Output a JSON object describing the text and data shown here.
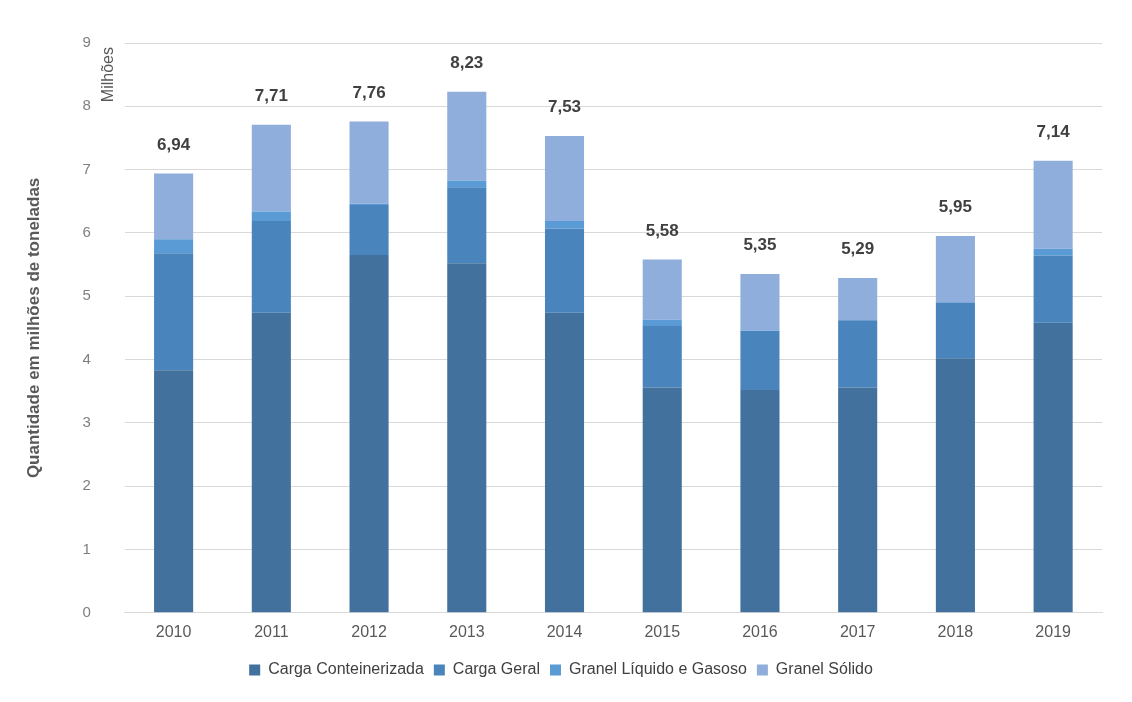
{
  "chart_data": {
    "type": "bar",
    "stacked": true,
    "ylabel": "Quantidade em milhões de toneladas",
    "annotations": [
      "Milhões"
    ],
    "categories": [
      "2010",
      "2011",
      "2012",
      "2013",
      "2014",
      "2015",
      "2016",
      "2017",
      "2018",
      "2019"
    ],
    "series": [
      {
        "name": "Carga Conteinerizada",
        "color": "#41719c",
        "values": [
          3.83,
          4.74,
          5.65,
          5.52,
          4.74,
          3.56,
          3.52,
          3.56,
          4.02,
          4.58
        ]
      },
      {
        "name": "Carga Geral",
        "color": "#4a84bd",
        "values": [
          1.85,
          1.45,
          0.79,
          1.2,
          1.33,
          0.97,
          0.93,
          1.06,
          0.88,
          1.06
        ]
      },
      {
        "name": "Granel Líquido e Gasoso",
        "color": "#5b9bd5",
        "values": [
          0.22,
          0.15,
          0.02,
          0.11,
          0.12,
          0.1,
          0.01,
          0,
          0.01,
          0.11
        ]
      },
      {
        "name": "Granel Sólido",
        "color": "#8faedb",
        "values": [
          1.04,
          1.37,
          1.3,
          1.4,
          1.34,
          0.95,
          0.89,
          0.67,
          1.04,
          1.39
        ]
      }
    ],
    "totals": [
      "6,94",
      "7,71",
      "7,76",
      "8,23",
      "7,53",
      "5,58",
      "5,35",
      "5,29",
      "5,95",
      "7,14"
    ],
    "ylim": [
      0,
      9
    ],
    "yticks": [
      0,
      1,
      2,
      3,
      4,
      5,
      6,
      7,
      8,
      9
    ],
    "grid": "y",
    "legend": "bottom"
  }
}
